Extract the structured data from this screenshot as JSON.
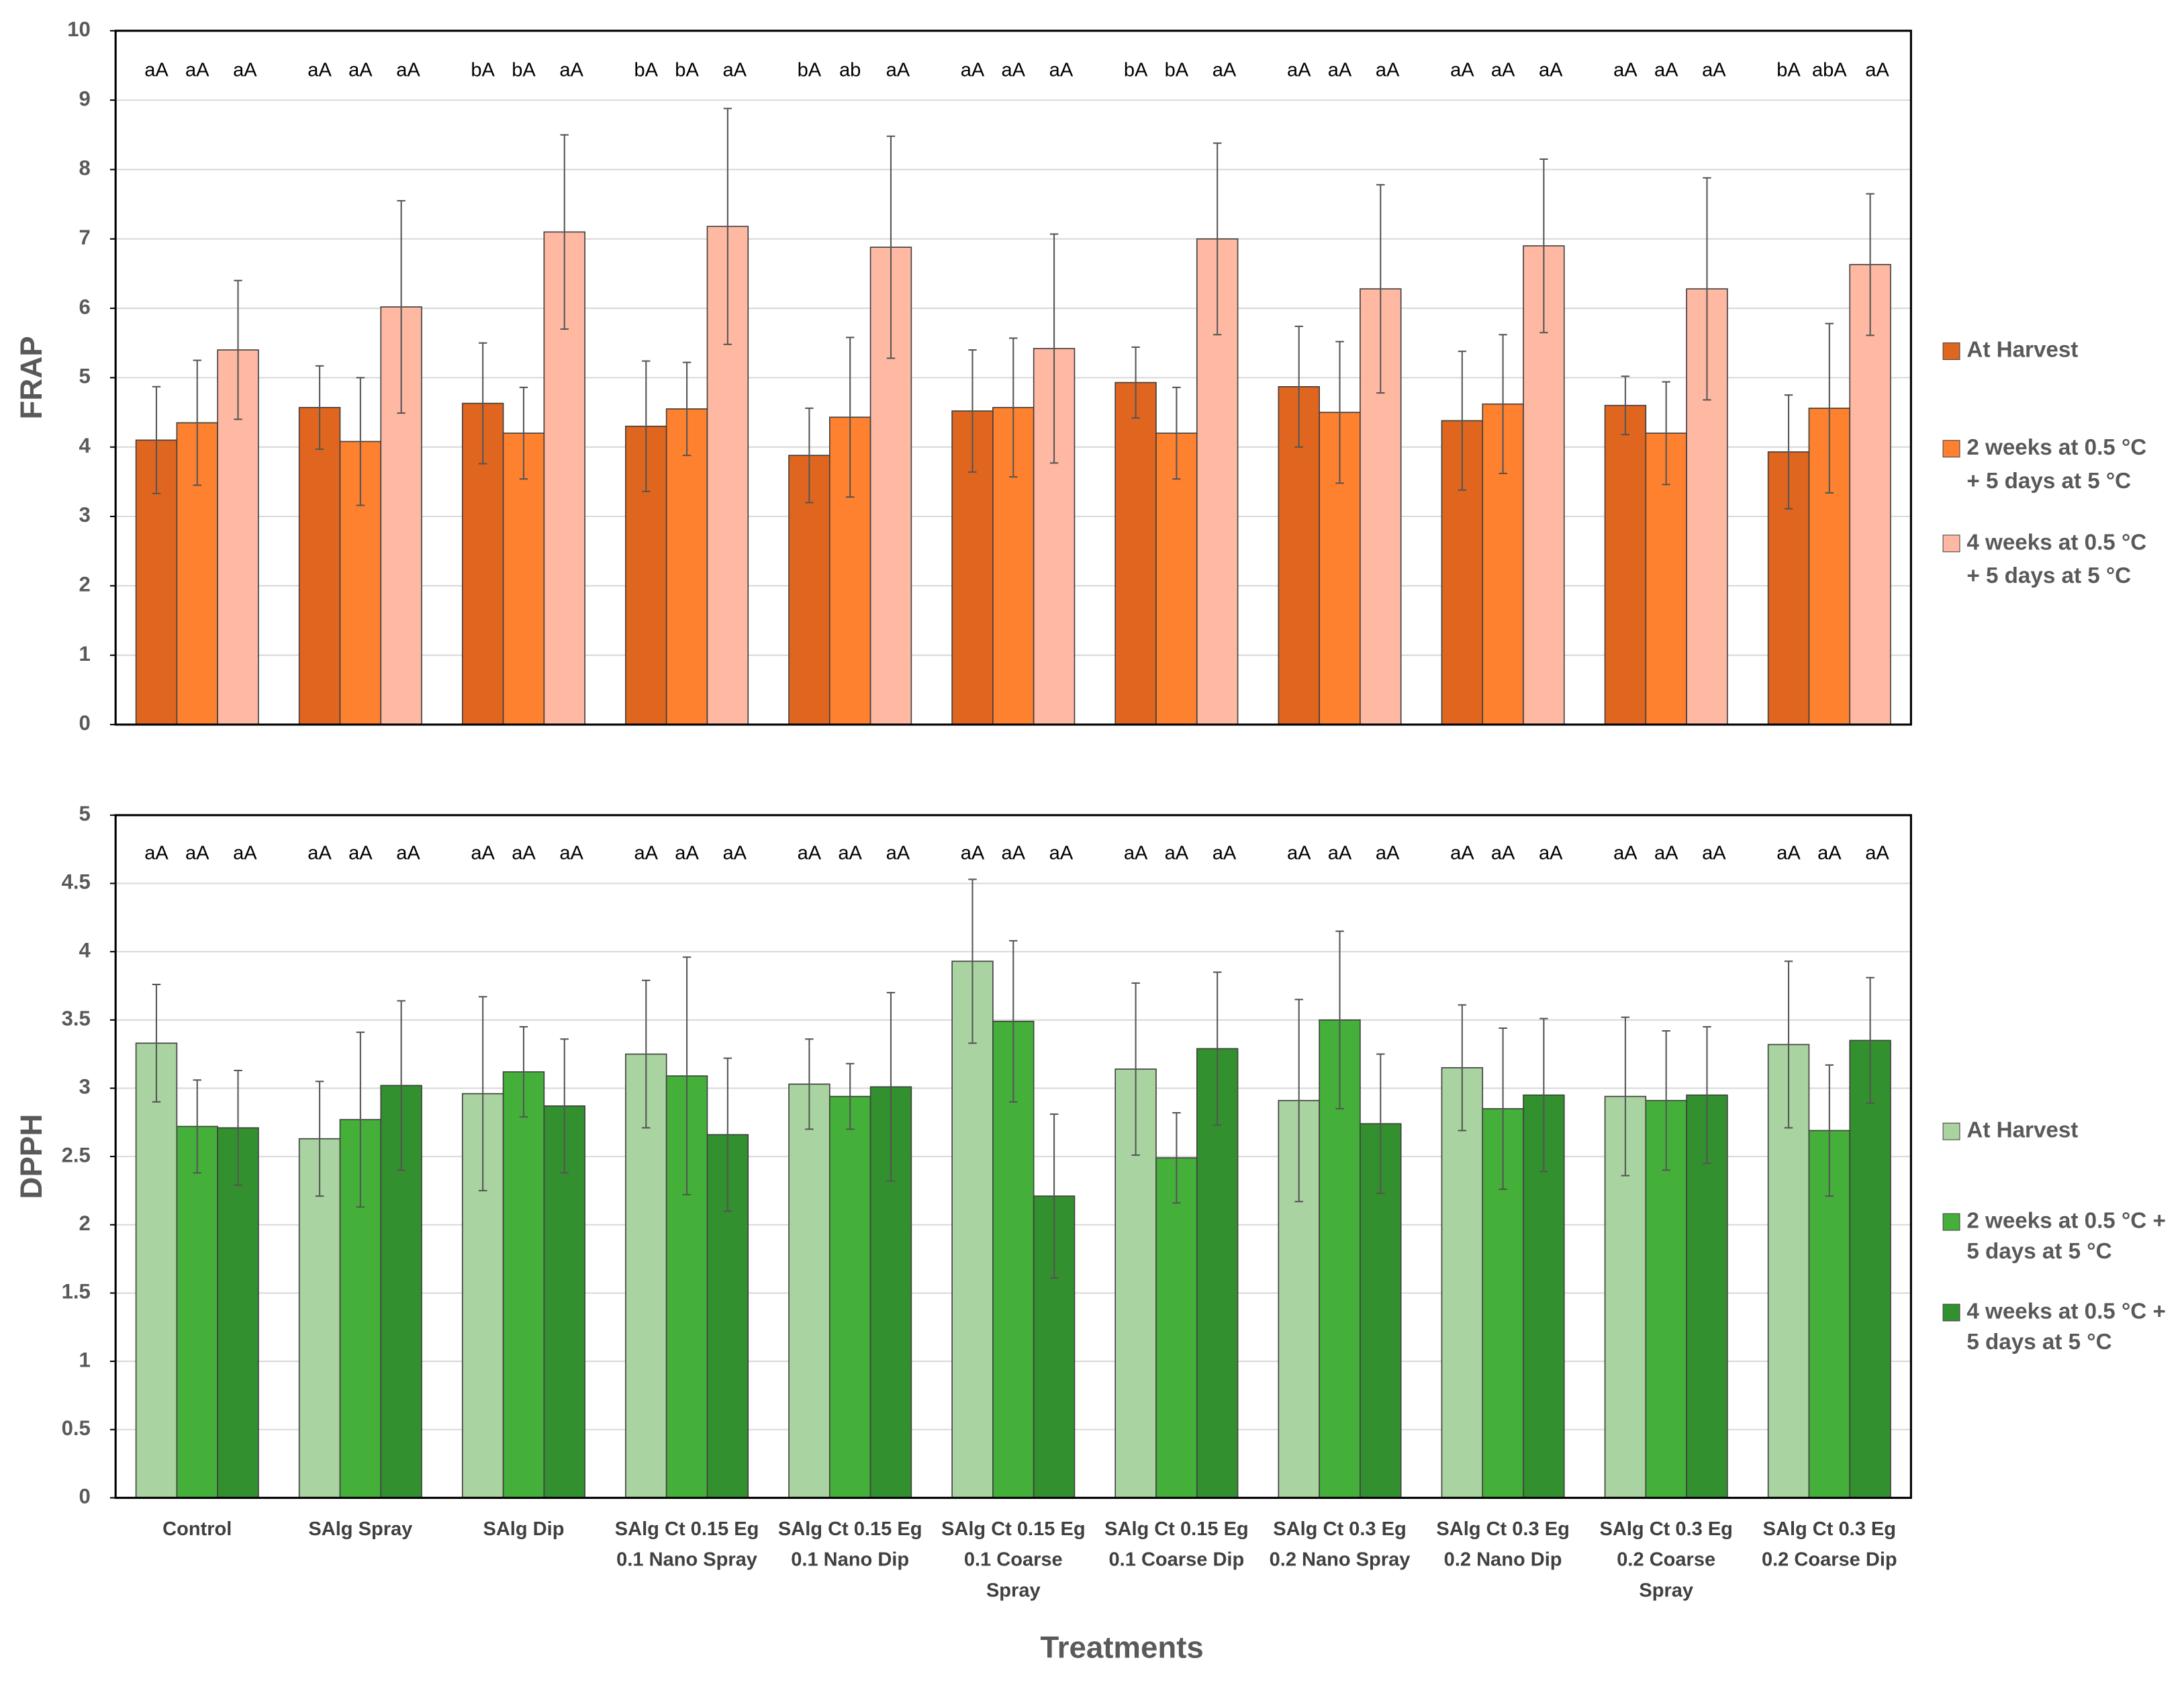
{
  "chart_data": [
    {
      "type": "bar",
      "ylabel": "FRAP",
      "ylim": [
        0,
        10
      ],
      "yticks": [
        0,
        1,
        2,
        3,
        4,
        5,
        6,
        7,
        8,
        9,
        10
      ],
      "grid": true,
      "legend": "right",
      "categories": [
        null,
        null,
        null,
        null,
        null,
        null,
        null,
        null,
        null,
        null,
        null
      ],
      "series": [
        {
          "name": "At Harvest",
          "color": "#e0661f",
          "values": [
            4.1,
            4.57,
            4.63,
            4.3,
            3.88,
            4.52,
            4.93,
            4.87,
            4.38,
            4.6,
            3.93
          ],
          "errors": [
            0.77,
            0.6,
            0.87,
            0.94,
            0.68,
            0.88,
            0.51,
            0.87,
            1.0,
            0.42,
            0.82
          ],
          "annotations": [
            "aA",
            "aA",
            "bA",
            "bA",
            "bA",
            "aA",
            "bA",
            "aA",
            "aA",
            "aA",
            "bA"
          ]
        },
        {
          "name": "2 weeks at 0.5 °C\n+  5 days  at 5 °C",
          "color": "#fd812f",
          "values": [
            4.35,
            4.08,
            4.2,
            4.55,
            4.43,
            4.57,
            4.2,
            4.5,
            4.62,
            4.2,
            4.56
          ],
          "errors": [
            0.9,
            0.92,
            0.66,
            0.67,
            1.15,
            1.0,
            0.66,
            1.02,
            1.0,
            0.74,
            1.22
          ],
          "annotations": [
            "aA",
            "aA",
            "bA",
            "bA",
            "ab",
            "aA",
            "bA",
            "aA",
            "aA",
            "aA",
            "abA"
          ]
        },
        {
          "name": "4 weeks at 0.5 °C\n+  5 days  at 5 °C",
          "color": "#ffb9a3",
          "values": [
            5.4,
            6.02,
            7.1,
            7.18,
            6.88,
            5.42,
            7.0,
            6.28,
            6.9,
            6.28,
            6.63
          ],
          "errors": [
            1.0,
            1.53,
            1.4,
            1.7,
            1.6,
            1.65,
            1.38,
            1.5,
            1.25,
            1.6,
            1.02
          ],
          "annotations": [
            "aA",
            "aA",
            "aA",
            "aA",
            "aA",
            "aA",
            "aA",
            "aA",
            "aA",
            "aA",
            "aA"
          ]
        }
      ]
    },
    {
      "type": "bar",
      "ylabel": "DPPH",
      "xlabel": "Treatments",
      "ylim": [
        0,
        5
      ],
      "yticks": [
        0,
        0.5,
        1,
        1.5,
        2,
        2.5,
        3,
        3.5,
        4,
        4.5,
        5
      ],
      "grid": true,
      "legend": "right",
      "categories": [
        "Control",
        "SAlg  Spray",
        "SAlg  Dip",
        "SAlg Ct 0.15 Eg\n0.1 Nano Spray",
        "SAlg Ct 0.15 Eg\n0.1 Nano Dip",
        "SAlg Ct 0.15 Eg\n0.1 Coarse\nSpray",
        "SAlg Ct 0.15 Eg\n0.1 Coarse Dip",
        "SAlg Ct 0.3 Eg\n0.2 Nano Spray",
        "SAlg Ct 0.3 Eg\n0.2 Nano Dip",
        "SAlg Ct 0.3 Eg\n0.2 Coarse\nSpray",
        "SAlg Ct 0.3 Eg\n0.2 Coarse Dip"
      ],
      "series": [
        {
          "name": "At Harvest",
          "color": "#a9d3a0",
          "values": [
            3.33,
            2.63,
            2.96,
            3.25,
            3.03,
            3.93,
            3.14,
            2.91,
            3.15,
            2.94,
            3.32
          ],
          "errors": [
            0.43,
            0.42,
            0.71,
            0.54,
            0.33,
            0.6,
            0.63,
            0.74,
            0.46,
            0.58,
            0.61
          ],
          "annotations": [
            "aA",
            "aA",
            "aA",
            "aA",
            "aA",
            "aA",
            "aA",
            "aA",
            "aA",
            "aA",
            "aA"
          ]
        },
        {
          "name": "2 weeks at 0.5 °C +\n5 days  at 5 °C",
          "color": "#44b03a",
          "values": [
            2.72,
            2.77,
            3.12,
            3.09,
            2.94,
            3.49,
            2.49,
            3.5,
            2.85,
            2.91,
            2.69
          ],
          "errors": [
            0.34,
            0.64,
            0.33,
            0.87,
            0.24,
            0.59,
            0.33,
            0.65,
            0.59,
            0.51,
            0.48
          ],
          "annotations": [
            "aA",
            "aA",
            "aA",
            "aA",
            "aA",
            "aA",
            "aA",
            "aA",
            "aA",
            "aA",
            "aA"
          ]
        },
        {
          "name": "4 weeks at 0.5 °C +\n5 days  at 5 °C",
          "color": "#33902e",
          "values": [
            2.71,
            3.02,
            2.87,
            2.66,
            3.01,
            2.21,
            3.29,
            2.74,
            2.95,
            2.95,
            3.35
          ],
          "errors": [
            0.42,
            0.62,
            0.49,
            0.56,
            0.69,
            0.6,
            0.56,
            0.51,
            0.56,
            0.5,
            0.46
          ],
          "annotations": [
            "aA",
            "aA",
            "aA",
            "aA",
            "aA",
            "aA",
            "aA",
            "aA",
            "aA",
            "aA",
            "aA"
          ]
        }
      ]
    }
  ]
}
